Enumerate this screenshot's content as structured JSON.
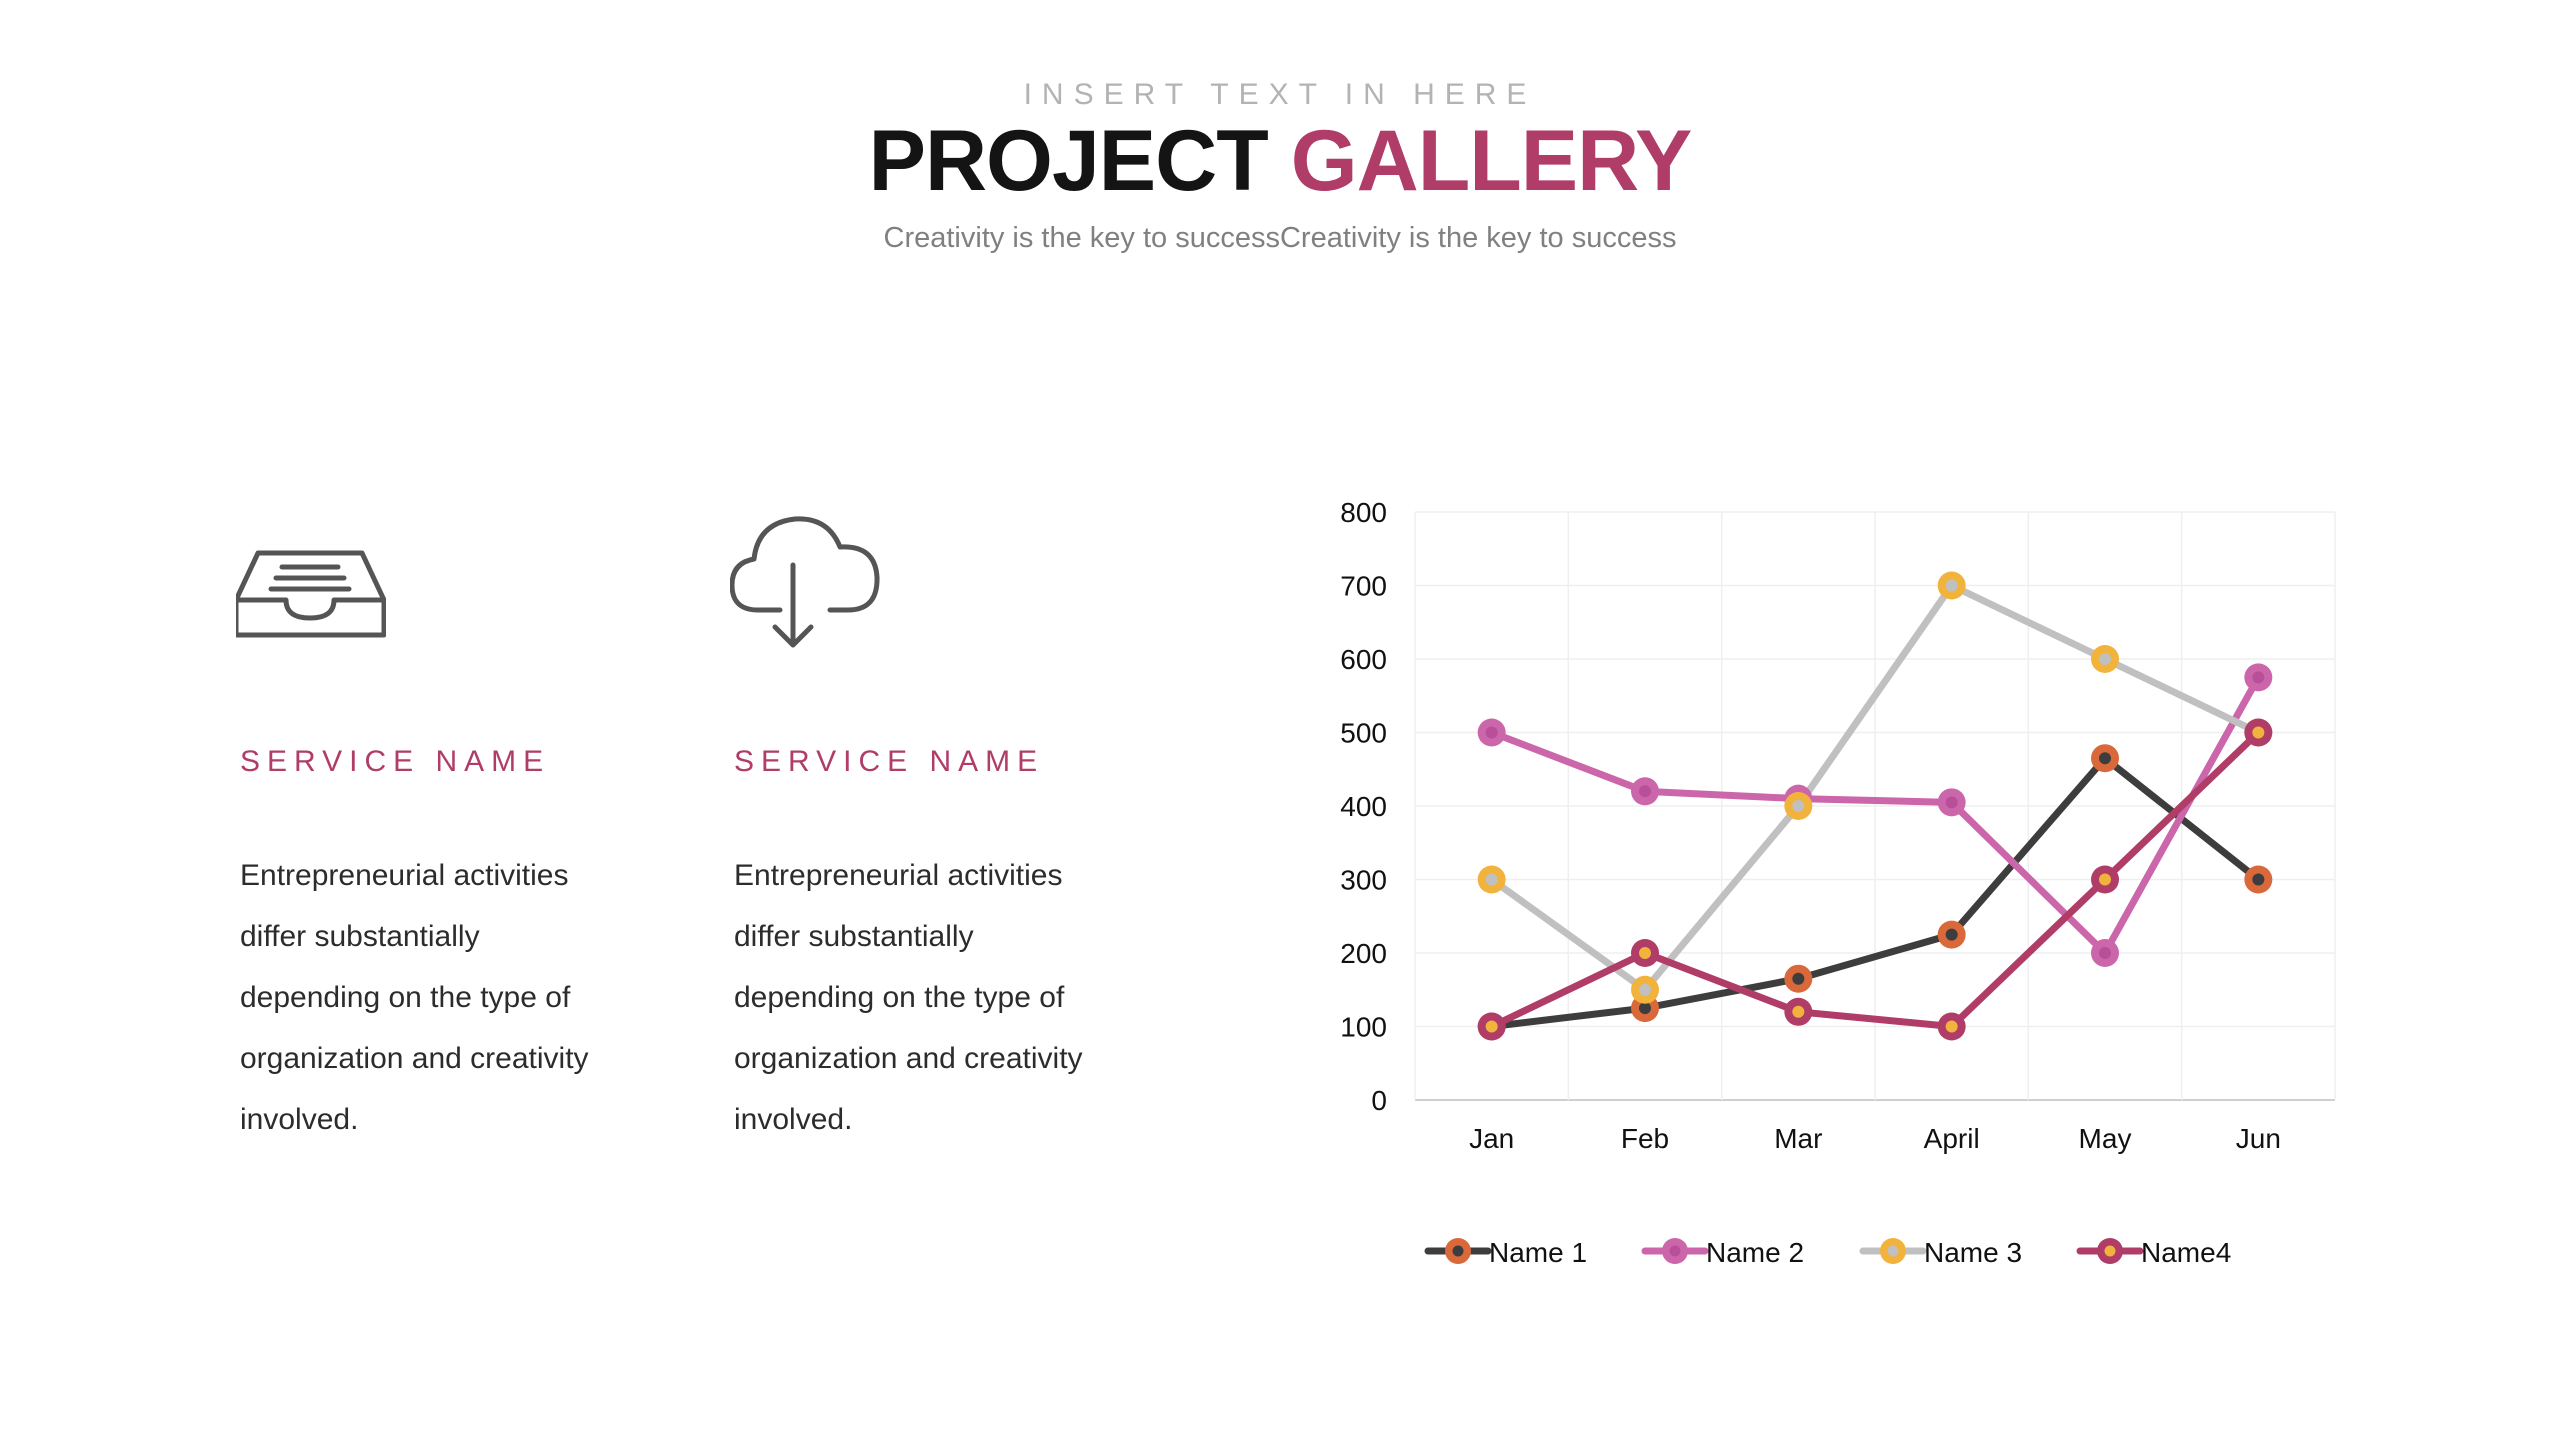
{
  "header": {
    "kicker": "INSERT TEXT IN HERE",
    "title_part1": "PROJECT",
    "title_part2": "GALLERY",
    "subtitle": "Creativity is the key to successCreativity is the key to success"
  },
  "services": [
    {
      "icon": "inbox-tray-icon",
      "title": "SERVICE NAME",
      "body": [
        "Entrepreneurial activities",
        "differ substantially",
        "depending on the type of",
        "organization and creativity",
        "involved."
      ]
    },
    {
      "icon": "cloud-download-icon",
      "title": "SERVICE NAME",
      "body": [
        "Entrepreneurial activities",
        "differ substantially",
        "depending on the type of",
        "organization and creativity",
        "involved."
      ]
    }
  ],
  "colors": {
    "accent": "#b03c68",
    "kicker": "#b3b3b3"
  },
  "chart_data": {
    "type": "line",
    "categories": [
      "Jan",
      "Feb",
      "Mar",
      "April",
      "May",
      "Jun"
    ],
    "ylim": [
      0,
      800
    ],
    "yticks": [
      0,
      100,
      200,
      300,
      400,
      500,
      600,
      700,
      800
    ],
    "grid": true,
    "legend": "bottom",
    "series": [
      {
        "name": "Name 1",
        "values": [
          100,
          125,
          165,
          225,
          465,
          300
        ],
        "line": "#3d3d3d",
        "marker": "#d9683a",
        "dot": "#3d3d3d"
      },
      {
        "name": "Name 2",
        "values": [
          500,
          420,
          410,
          405,
          200,
          575
        ],
        "line": "#cc66aa",
        "marker": "#cc66aa",
        "dot": "#b94f99"
      },
      {
        "name": "Name 3",
        "values": [
          300,
          150,
          400,
          700,
          600,
          500
        ],
        "line": "#c0c0c0",
        "marker": "#f2b33d",
        "dot": "#c0c0c0"
      },
      {
        "name": "Name4",
        "values": [
          100,
          200,
          120,
          100,
          300,
          500
        ],
        "line": "#b03c68",
        "marker": "#b03c68",
        "dot": "#f2b33d"
      }
    ]
  }
}
